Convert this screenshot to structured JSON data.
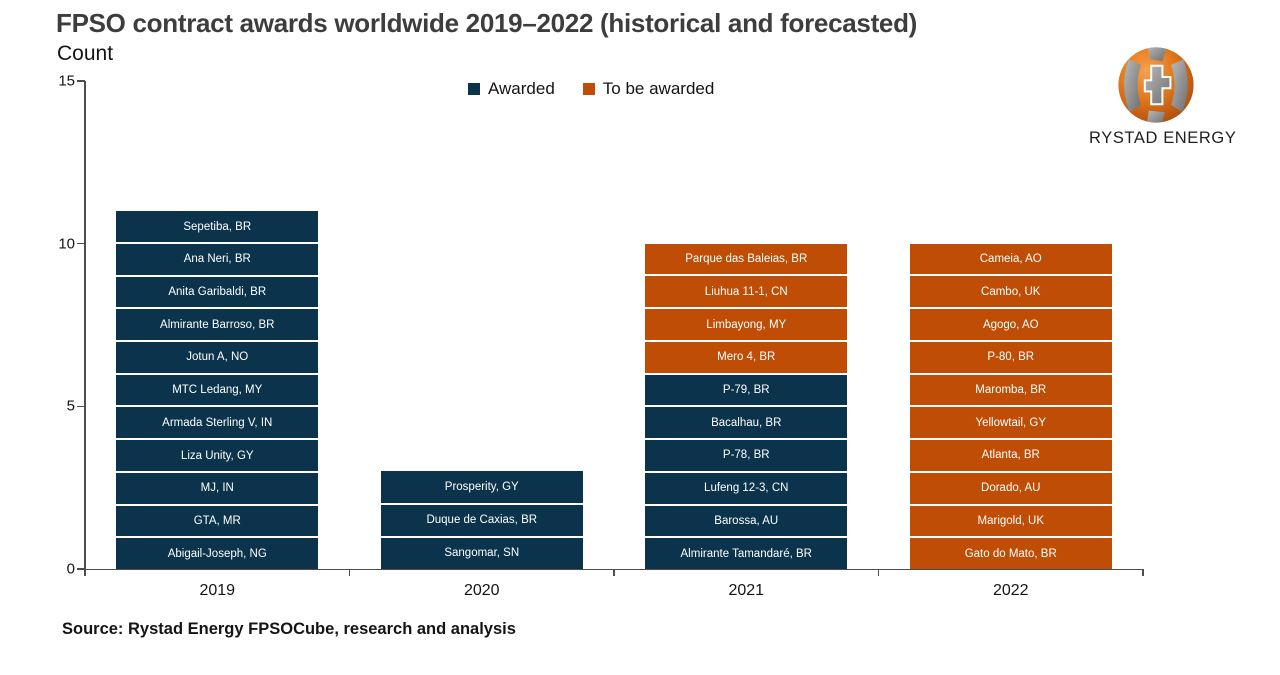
{
  "header": {
    "title": "FPSO contract awards worldwide 2019–2022 (historical and forecasted)",
    "subtitle": "Count"
  },
  "logo": {
    "brand": "RYSTAD ENERGY"
  },
  "legend": [
    {
      "label": "Awarded",
      "color": "#0b334b"
    },
    {
      "label": "To be awarded",
      "color": "#bf4d06"
    }
  ],
  "colors": {
    "awarded": "#0b334b",
    "to_be_awarded": "#bf4d06"
  },
  "source": "Source: Rystad Energy FPSOCube, research and analysis",
  "chart_data": {
    "type": "bar",
    "stacked": true,
    "title": "FPSO contract awards worldwide 2019–2022 (historical and forecasted)",
    "ylabel": "Count",
    "xlabel": "",
    "ylim": [
      0,
      15
    ],
    "yticks": [
      0,
      5,
      10,
      15
    ],
    "grid": false,
    "legend_position": "top-center",
    "unit_value_per_segment": 1,
    "categories": [
      "2019",
      "2020",
      "2021",
      "2022"
    ],
    "series": [
      {
        "name": "Awarded",
        "values": [
          11,
          3,
          6,
          0
        ]
      },
      {
        "name": "To be awarded",
        "values": [
          0,
          0,
          4,
          10
        ]
      }
    ],
    "bars": [
      {
        "year": "2019",
        "total": 11,
        "segments_top_to_bottom": [
          {
            "label": "Sepetiba, BR",
            "status": "awarded"
          },
          {
            "label": "Ana Neri, BR",
            "status": "awarded"
          },
          {
            "label": "Anita Garibaldi, BR",
            "status": "awarded"
          },
          {
            "label": "Almirante Barroso, BR",
            "status": "awarded"
          },
          {
            "label": "Jotun A, NO",
            "status": "awarded"
          },
          {
            "label": "MTC Ledang, MY",
            "status": "awarded"
          },
          {
            "label": "Armada Sterling V, IN",
            "status": "awarded"
          },
          {
            "label": "Liza Unity, GY",
            "status": "awarded"
          },
          {
            "label": "MJ, IN",
            "status": "awarded"
          },
          {
            "label": "GTA, MR",
            "status": "awarded"
          },
          {
            "label": "Abigail-Joseph, NG",
            "status": "awarded"
          }
        ]
      },
      {
        "year": "2020",
        "total": 3,
        "segments_top_to_bottom": [
          {
            "label": "Prosperity, GY",
            "status": "awarded"
          },
          {
            "label": "Duque de Caxias, BR",
            "status": "awarded"
          },
          {
            "label": "Sangomar, SN",
            "status": "awarded"
          }
        ]
      },
      {
        "year": "2021",
        "total": 10,
        "segments_top_to_bottom": [
          {
            "label": "Parque das Baleias, BR",
            "status": "to_be_awarded"
          },
          {
            "label": "Liuhua 11-1, CN",
            "status": "to_be_awarded"
          },
          {
            "label": "Limbayong, MY",
            "status": "to_be_awarded"
          },
          {
            "label": "Mero 4, BR",
            "status": "to_be_awarded"
          },
          {
            "label": "P-79, BR",
            "status": "awarded"
          },
          {
            "label": "Bacalhau, BR",
            "status": "awarded"
          },
          {
            "label": "P-78, BR",
            "status": "awarded"
          },
          {
            "label": "Lufeng 12-3, CN",
            "status": "awarded"
          },
          {
            "label": "Barossa, AU",
            "status": "awarded"
          },
          {
            "label": "Almirante Tamandaré, BR",
            "status": "awarded"
          }
        ]
      },
      {
        "year": "2022",
        "total": 10,
        "segments_top_to_bottom": [
          {
            "label": "Cameia, AO",
            "status": "to_be_awarded"
          },
          {
            "label": "Cambo, UK",
            "status": "to_be_awarded"
          },
          {
            "label": "Agogo, AO",
            "status": "to_be_awarded"
          },
          {
            "label": "P-80, BR",
            "status": "to_be_awarded"
          },
          {
            "label": "Maromba, BR",
            "status": "to_be_awarded"
          },
          {
            "label": "Yellowtail, GY",
            "status": "to_be_awarded"
          },
          {
            "label": "Atlanta, BR",
            "status": "to_be_awarded"
          },
          {
            "label": "Dorado, AU",
            "status": "to_be_awarded"
          },
          {
            "label": "Marigold, UK",
            "status": "to_be_awarded"
          },
          {
            "label": "Gato do Mato, BR",
            "status": "to_be_awarded"
          }
        ]
      }
    ]
  }
}
